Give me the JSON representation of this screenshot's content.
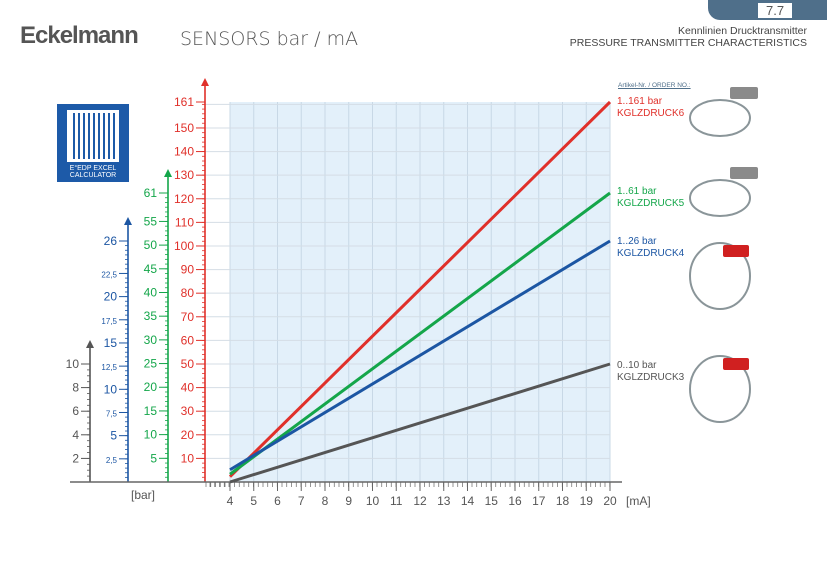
{
  "header": {
    "logo": "Eckelmann",
    "title": "SENSORS bar / mA",
    "page": "7.7",
    "subtitle_de": "Kennlinien Drucktransmitter",
    "subtitle_en": "PRESSURE TRANSMITTER CHARACTERISTICS"
  },
  "qr": {
    "label1": "E°EDP EXCEL",
    "label2": "CALCULATOR"
  },
  "products": {
    "article_label": "Artikel-Nr. / ORDER NO.:",
    "items": [
      {
        "range": "1..161 bar",
        "code": "KGLZDRUCK6",
        "color": "#e0302a"
      },
      {
        "range": "1..61 bar",
        "code": "KGLZDRUCK5",
        "color": "#14a64a"
      },
      {
        "range": "1..26 bar",
        "code": "KGLZDRUCK4",
        "color": "#1c56a3"
      },
      {
        "range": "0..10 bar",
        "code": "KGLZDRUCK3",
        "color": "#555555"
      }
    ]
  },
  "chart_data": {
    "type": "line",
    "xlabel": "[mA]",
    "ylabel": "[bar]",
    "xlim": [
      4,
      20
    ],
    "x_ticks": [
      "4",
      "5",
      "6",
      "7",
      "8",
      "9",
      "10",
      "11",
      "12",
      "13",
      "14",
      "15",
      "16",
      "17",
      "18",
      "19",
      "20"
    ],
    "axes": [
      {
        "name": "red",
        "max": 161,
        "ticks": [
          "10",
          "20",
          "30",
          "40",
          "50",
          "60",
          "70",
          "80",
          "90",
          "100",
          "110",
          "120",
          "130",
          "140",
          "150",
          "161"
        ],
        "tick_values": [
          10,
          20,
          30,
          40,
          50,
          60,
          70,
          80,
          90,
          100,
          110,
          120,
          130,
          140,
          150,
          161
        ],
        "color": "#e0302a"
      },
      {
        "name": "green",
        "max": 61,
        "ticks": [
          "5",
          "10",
          "15",
          "20",
          "25",
          "30",
          "35",
          "40",
          "45",
          "50",
          "55",
          "61"
        ],
        "tick_values": [
          5,
          10,
          15,
          20,
          25,
          30,
          35,
          40,
          45,
          50,
          55,
          61
        ],
        "color": "#14a64a"
      },
      {
        "name": "blue",
        "max": 26,
        "ticks": [
          "2,5",
          "5",
          "7,5",
          "10",
          "12,5",
          "15",
          "17,5",
          "20",
          "22,5",
          "26"
        ],
        "tick_values": [
          2.5,
          5,
          7.5,
          10,
          12.5,
          15,
          17.5,
          20,
          22.5,
          26
        ],
        "color": "#1c56a3"
      },
      {
        "name": "gray",
        "max": 10,
        "ticks": [
          "2",
          "4",
          "6",
          "8",
          "10"
        ],
        "tick_values": [
          2,
          4,
          6,
          8,
          10
        ],
        "color": "#555555"
      }
    ],
    "series": [
      {
        "name": "KGLZDRUCK6",
        "x": [
          4,
          20
        ],
        "y": [
          1,
          161
        ],
        "axis": "red",
        "color": "#e0302a"
      },
      {
        "name": "KGLZDRUCK5",
        "x": [
          4,
          20
        ],
        "y": [
          1,
          61
        ],
        "axis": "green",
        "color": "#14a64a"
      },
      {
        "name": "KGLZDRUCK4",
        "x": [
          4,
          20
        ],
        "y": [
          1,
          26
        ],
        "axis": "blue",
        "color": "#1c56a3"
      },
      {
        "name": "KGLZDRUCK3",
        "x": [
          4,
          20
        ],
        "y": [
          0,
          10
        ],
        "axis": "gray",
        "color": "#555555"
      }
    ]
  }
}
